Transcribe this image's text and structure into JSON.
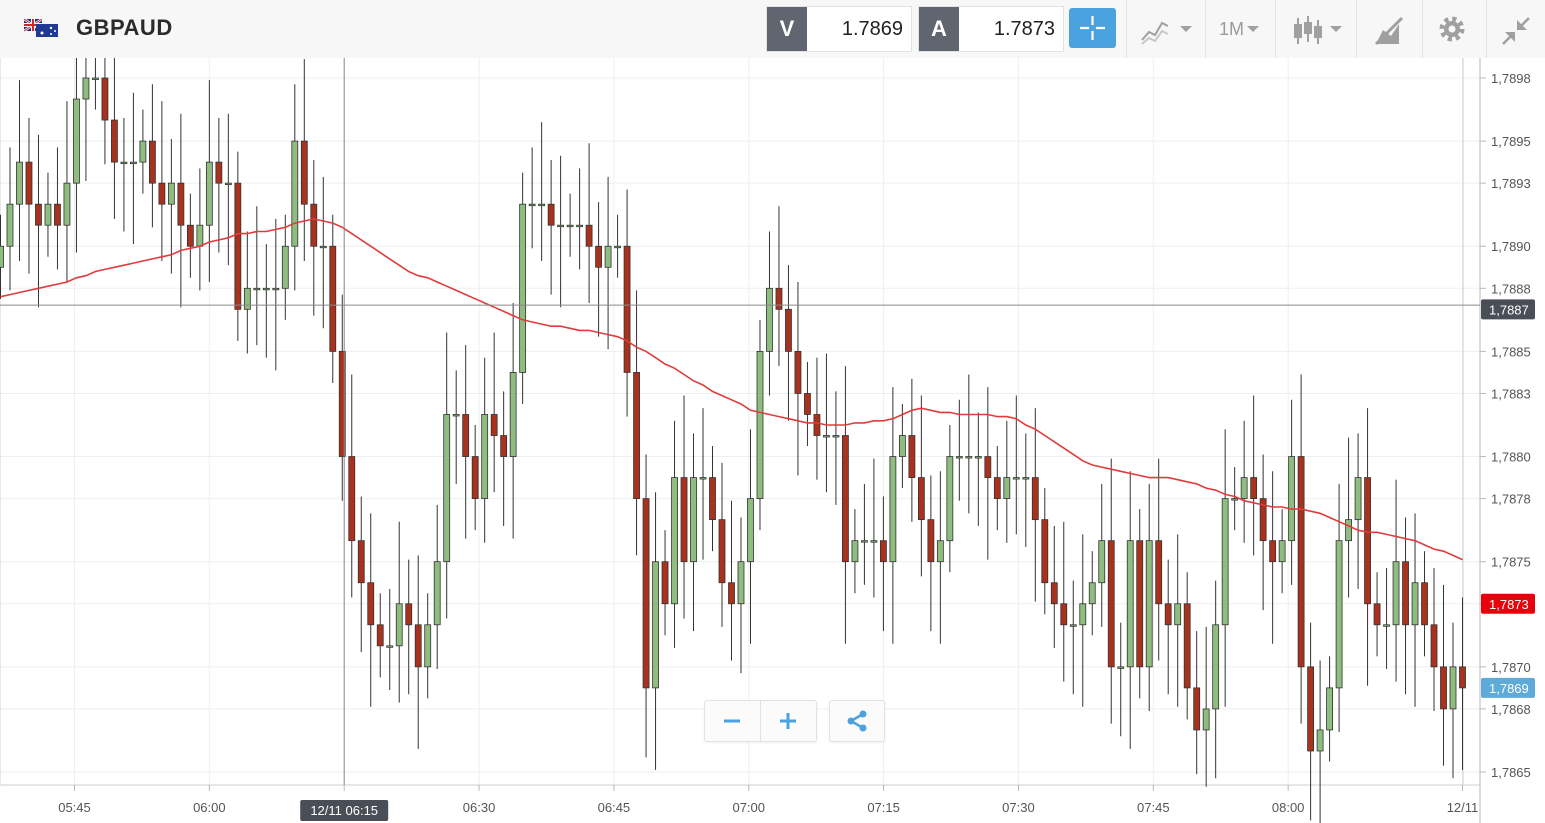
{
  "header": {
    "symbol": "GBPAUD",
    "sell": {
      "label": "V",
      "price": "1.7869"
    },
    "buy": {
      "label": "A",
      "price": "1.7873"
    },
    "timeframe": "1M"
  },
  "icons": {
    "flag": "gbp-aud-flag-icon",
    "crosshair": "crosshair-icon",
    "chart_type": "line-chart-icon",
    "candles": "candlestick-icon",
    "drawing": "drawing-tools-icon",
    "settings": "gear-icon",
    "collapse": "collapse-icon",
    "zoom_out": "minus-icon",
    "zoom_in": "plus-icon",
    "share": "share-icon"
  },
  "colors": {
    "up": "#8fbc7f",
    "down": "#a8321e",
    "ma": "#e03c3c",
    "ask_badge": "#e8000b",
    "bid_badge": "#5eaad8",
    "cursor_badge": "#4a4f57",
    "crosshair_btn": "#4aa3df"
  },
  "chart_data": {
    "type": "candlestick",
    "x_ticks": [
      "05:45",
      "06:00",
      "06:15",
      "06:30",
      "06:45",
      "07:00",
      "07:15",
      "07:30",
      "07:45",
      "08:00",
      "12/11"
    ],
    "y_ticks": [
      "1,7898",
      "1,7895",
      "1,7893",
      "1,7890",
      "1,7888",
      "1,7885",
      "1,7883",
      "1,7880",
      "1,7878",
      "1,7875",
      "1,7873",
      "1,7870",
      "1,7868",
      "1,7865"
    ],
    "y_range": [
      1.78642,
      1.78993
    ],
    "grid": true,
    "badges": {
      "cursor_price": "1,7887",
      "ask": "1,7873",
      "bid": "1,7869"
    },
    "cursor_time_label": "12/11 06:15",
    "cursor_price_value": 1.78872,
    "closes": [
      1.789,
      1.7892,
      1.7894,
      1.7892,
      1.7891,
      1.7892,
      1.7891,
      1.7893,
      1.7897,
      1.7898,
      1.7898,
      1.7896,
      1.7894,
      1.7894,
      1.7894,
      1.7895,
      1.7893,
      1.7892,
      1.7893,
      1.7891,
      1.789,
      1.7891,
      1.7894,
      1.7893,
      1.7893,
      1.7887,
      1.7888,
      1.7888,
      1.7888,
      1.7888,
      1.789,
      1.7895,
      1.7892,
      1.789,
      1.789,
      1.7885,
      1.788,
      1.7876,
      1.7874,
      1.7872,
      1.7871,
      1.7871,
      1.7873,
      1.7872,
      1.787,
      1.7872,
      1.7875,
      1.7882,
      1.7882,
      1.788,
      1.7878,
      1.7882,
      1.7881,
      1.788,
      1.7884,
      1.7892,
      1.7892,
      1.7892,
      1.7891,
      1.7891,
      1.7891,
      1.7891,
      1.789,
      1.7889,
      1.789,
      1.789,
      1.7884,
      1.7878,
      1.7869,
      1.7875,
      1.7873,
      1.7879,
      1.7875,
      1.7879,
      1.7879,
      1.7877,
      1.7874,
      1.7873,
      1.7875,
      1.7878,
      1.7885,
      1.7888,
      1.7887,
      1.7885,
      1.7883,
      1.7882,
      1.7881,
      1.7881,
      1.7881,
      1.7875,
      1.7876,
      1.7876,
      1.7876,
      1.7875,
      1.788,
      1.7881,
      1.7879,
      1.7877,
      1.7875,
      1.7876,
      1.788,
      1.788,
      1.788,
      1.788,
      1.7879,
      1.7878,
      1.7879,
      1.7879,
      1.7879,
      1.7877,
      1.7874,
      1.7873,
      1.7872,
      1.7872,
      1.7873,
      1.7874,
      1.7876,
      1.787,
      1.787,
      1.7876,
      1.787,
      1.7876,
      1.7873,
      1.7872,
      1.7873,
      1.7869,
      1.7867,
      1.7868,
      1.7872,
      1.7878,
      1.7878,
      1.7879,
      1.7878,
      1.7876,
      1.7875,
      1.7876,
      1.788,
      1.787,
      1.7866,
      1.7867,
      1.7869,
      1.7876,
      1.7877,
      1.7879,
      1.7873,
      1.7872,
      1.7872,
      1.7875,
      1.7872,
      1.7874,
      1.7872,
      1.787,
      1.7868,
      1.787,
      1.7869
    ],
    "series": [
      {
        "type": "ma",
        "values": [
          1.78876,
          1.78877,
          1.78878,
          1.78879,
          1.7888,
          1.78881,
          1.78882,
          1.78883,
          1.78885,
          1.78886,
          1.78888,
          1.78889,
          1.7889,
          1.78891,
          1.78892,
          1.78893,
          1.78894,
          1.78895,
          1.78896,
          1.78898,
          1.78899,
          1.789,
          1.78902,
          1.78903,
          1.78904,
          1.78906,
          1.78906,
          1.78907,
          1.78907,
          1.78908,
          1.78909,
          1.78911,
          1.78912,
          1.78913,
          1.78912,
          1.78911,
          1.78909,
          1.78906,
          1.78903,
          1.789,
          1.78897,
          1.78894,
          1.78891,
          1.78888,
          1.78886,
          1.78885,
          1.78883,
          1.78881,
          1.78879,
          1.78877,
          1.78875,
          1.78873,
          1.78871,
          1.78869,
          1.78867,
          1.78865,
          1.78864,
          1.78863,
          1.78862,
          1.78862,
          1.78861,
          1.7886,
          1.7886,
          1.78859,
          1.78858,
          1.78857,
          1.78855,
          1.78852,
          1.7885,
          1.78847,
          1.78844,
          1.78842,
          1.78839,
          1.78836,
          1.78834,
          1.78831,
          1.78829,
          1.78827,
          1.78825,
          1.78822,
          1.78821,
          1.7882,
          1.78819,
          1.78818,
          1.78817,
          1.78816,
          1.78816,
          1.78815,
          1.78815,
          1.78815,
          1.78816,
          1.78816,
          1.78817,
          1.78817,
          1.78818,
          1.7882,
          1.78822,
          1.78823,
          1.78822,
          1.78821,
          1.78821,
          1.7882,
          1.7882,
          1.7882,
          1.7882,
          1.78819,
          1.78819,
          1.78818,
          1.78815,
          1.78813,
          1.7881,
          1.78807,
          1.78804,
          1.78801,
          1.78798,
          1.78796,
          1.78795,
          1.78794,
          1.78793,
          1.78792,
          1.78791,
          1.7879,
          1.7879,
          1.7879,
          1.78789,
          1.78788,
          1.78787,
          1.78785,
          1.78784,
          1.78782,
          1.78781,
          1.78779,
          1.78778,
          1.78777,
          1.78776,
          1.78776,
          1.78775,
          1.78775,
          1.78774,
          1.78773,
          1.78771,
          1.78769,
          1.78767,
          1.78765,
          1.78764,
          1.78764,
          1.78763,
          1.78762,
          1.78761,
          1.7876,
          1.78758,
          1.78756,
          1.78755,
          1.78753,
          1.78751
        ]
      }
    ]
  }
}
